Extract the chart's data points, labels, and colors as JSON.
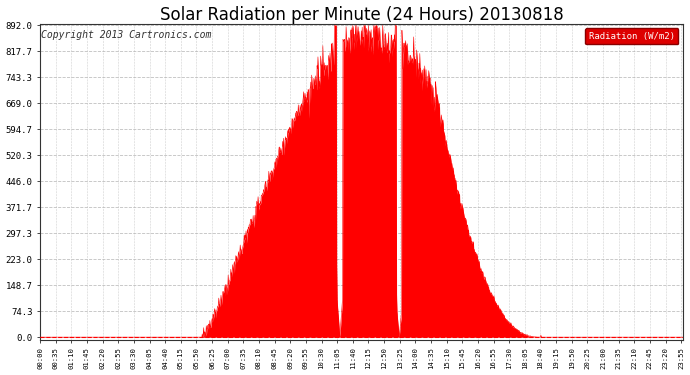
{
  "title": "Solar Radiation per Minute (24 Hours) 20130818",
  "copyright_text": "Copyright 2013 Cartronics.com",
  "legend_label": "Radiation (W/m2)",
  "yticks": [
    0.0,
    74.3,
    148.7,
    223.0,
    297.3,
    371.7,
    446.0,
    520.3,
    594.7,
    669.0,
    743.3,
    817.7,
    892.0
  ],
  "ymax": 892.0,
  "fill_color": "#ff0000",
  "background_color": "#ffffff",
  "grid_color": "#b0b0b0",
  "legend_bg": "#dd0000",
  "legend_text_color": "#ffffff",
  "title_fontsize": 12,
  "copyright_fontsize": 7,
  "total_minutes": 1440,
  "sunrise_minute": 362,
  "sunset_minute": 1121,
  "tick_interval": 35
}
